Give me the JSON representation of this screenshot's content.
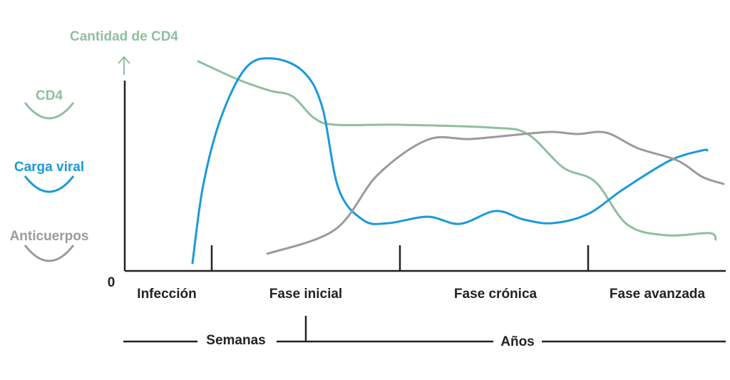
{
  "chart_data": {
    "type": "line",
    "y_axis_title": "Cantidad de CD4",
    "origin_label": "0",
    "legend": [
      {
        "label": "CD4",
        "color": "#8fbf9f"
      },
      {
        "label": "Carga viral",
        "color": "#1a9ad6"
      },
      {
        "label": "Anticuerpos",
        "color": "#9b9b9b"
      }
    ],
    "phase_labels": [
      "Infección",
      "Fase inicial",
      "Fase crónica",
      "Fase avanzada"
    ],
    "timescale_labels": [
      "Semanas",
      "Años"
    ],
    "axis_color": "#222222",
    "series": [
      {
        "name": "CD4",
        "color": "#8fbf9f",
        "points": [
          [
            278,
            86
          ],
          [
            335,
            112
          ],
          [
            378,
            127
          ],
          [
            410,
            135
          ],
          [
            440,
            165
          ],
          [
            470,
            175
          ],
          [
            560,
            175
          ],
          [
            690,
            179
          ],
          [
            740,
            188
          ],
          [
            790,
            235
          ],
          [
            835,
            255
          ],
          [
            880,
            315
          ],
          [
            935,
            330
          ],
          [
            995,
            327
          ],
          [
            1004,
            336
          ]
        ]
      },
      {
        "name": "Carga viral",
        "color": "#1a9ad6",
        "points": [
          [
            270,
            369
          ],
          [
            285,
            260
          ],
          [
            310,
            165
          ],
          [
            345,
            95
          ],
          [
            382,
            82
          ],
          [
            425,
            100
          ],
          [
            452,
            150
          ],
          [
            475,
            265
          ],
          [
            510,
            309
          ],
          [
            545,
            313
          ],
          [
            600,
            304
          ],
          [
            645,
            314
          ],
          [
            695,
            296
          ],
          [
            735,
            308
          ],
          [
            775,
            313
          ],
          [
            825,
            300
          ],
          [
            875,
            265
          ],
          [
            940,
            225
          ],
          [
            985,
            211
          ],
          [
            992,
            211
          ]
        ]
      },
      {
        "name": "Anticuerpos",
        "color": "#9b9b9b",
        "points": [
          [
            375,
            356
          ],
          [
            470,
            322
          ],
          [
            530,
            245
          ],
          [
            600,
            196
          ],
          [
            660,
            195
          ],
          [
            735,
            188
          ],
          [
            775,
            185
          ],
          [
            810,
            188
          ],
          [
            850,
            186
          ],
          [
            895,
            208
          ],
          [
            950,
            225
          ],
          [
            985,
            248
          ],
          [
            1015,
            258
          ]
        ]
      }
    ]
  }
}
